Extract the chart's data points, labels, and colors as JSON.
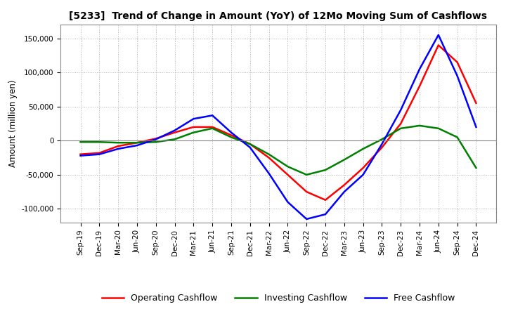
{
  "title": "[5233]  Trend of Change in Amount (YoY) of 12Mo Moving Sum of Cashflows",
  "ylabel": "Amount (million yen)",
  "x_labels": [
    "Sep-19",
    "Dec-19",
    "Mar-20",
    "Jun-20",
    "Sep-20",
    "Dec-20",
    "Mar-21",
    "Jun-21",
    "Sep-21",
    "Dec-21",
    "Mar-22",
    "Jun-22",
    "Sep-22",
    "Dec-22",
    "Mar-23",
    "Jun-23",
    "Sep-23",
    "Dec-23",
    "Mar-24",
    "Jun-24",
    "Sep-24",
    "Dec-24"
  ],
  "operating": [
    -20000,
    -18000,
    -8000,
    -3000,
    3000,
    12000,
    20000,
    20000,
    8000,
    -5000,
    -25000,
    -50000,
    -75000,
    -87000,
    -65000,
    -40000,
    -10000,
    25000,
    80000,
    140000,
    115000,
    55000
  ],
  "investing": [
    -2000,
    -2000,
    -3000,
    -3000,
    -2000,
    2000,
    12000,
    18000,
    5000,
    -5000,
    -20000,
    -38000,
    -50000,
    -43000,
    -28000,
    -12000,
    2000,
    18000,
    22000,
    18000,
    5000,
    -40000
  ],
  "free": [
    -22000,
    -20000,
    -12000,
    -7000,
    2000,
    15000,
    32000,
    37000,
    12000,
    -10000,
    -48000,
    -90000,
    -115000,
    -108000,
    -75000,
    -50000,
    -5000,
    45000,
    105000,
    155000,
    95000,
    20000
  ],
  "operating_color": "#ff0000",
  "investing_color": "#008000",
  "free_color": "#0000ff",
  "ylim": [
    -120000,
    170000
  ],
  "yticks": [
    -100000,
    -50000,
    0,
    50000,
    100000,
    150000
  ],
  "background_color": "#ffffff",
  "grid_color": "#b0b0b0"
}
